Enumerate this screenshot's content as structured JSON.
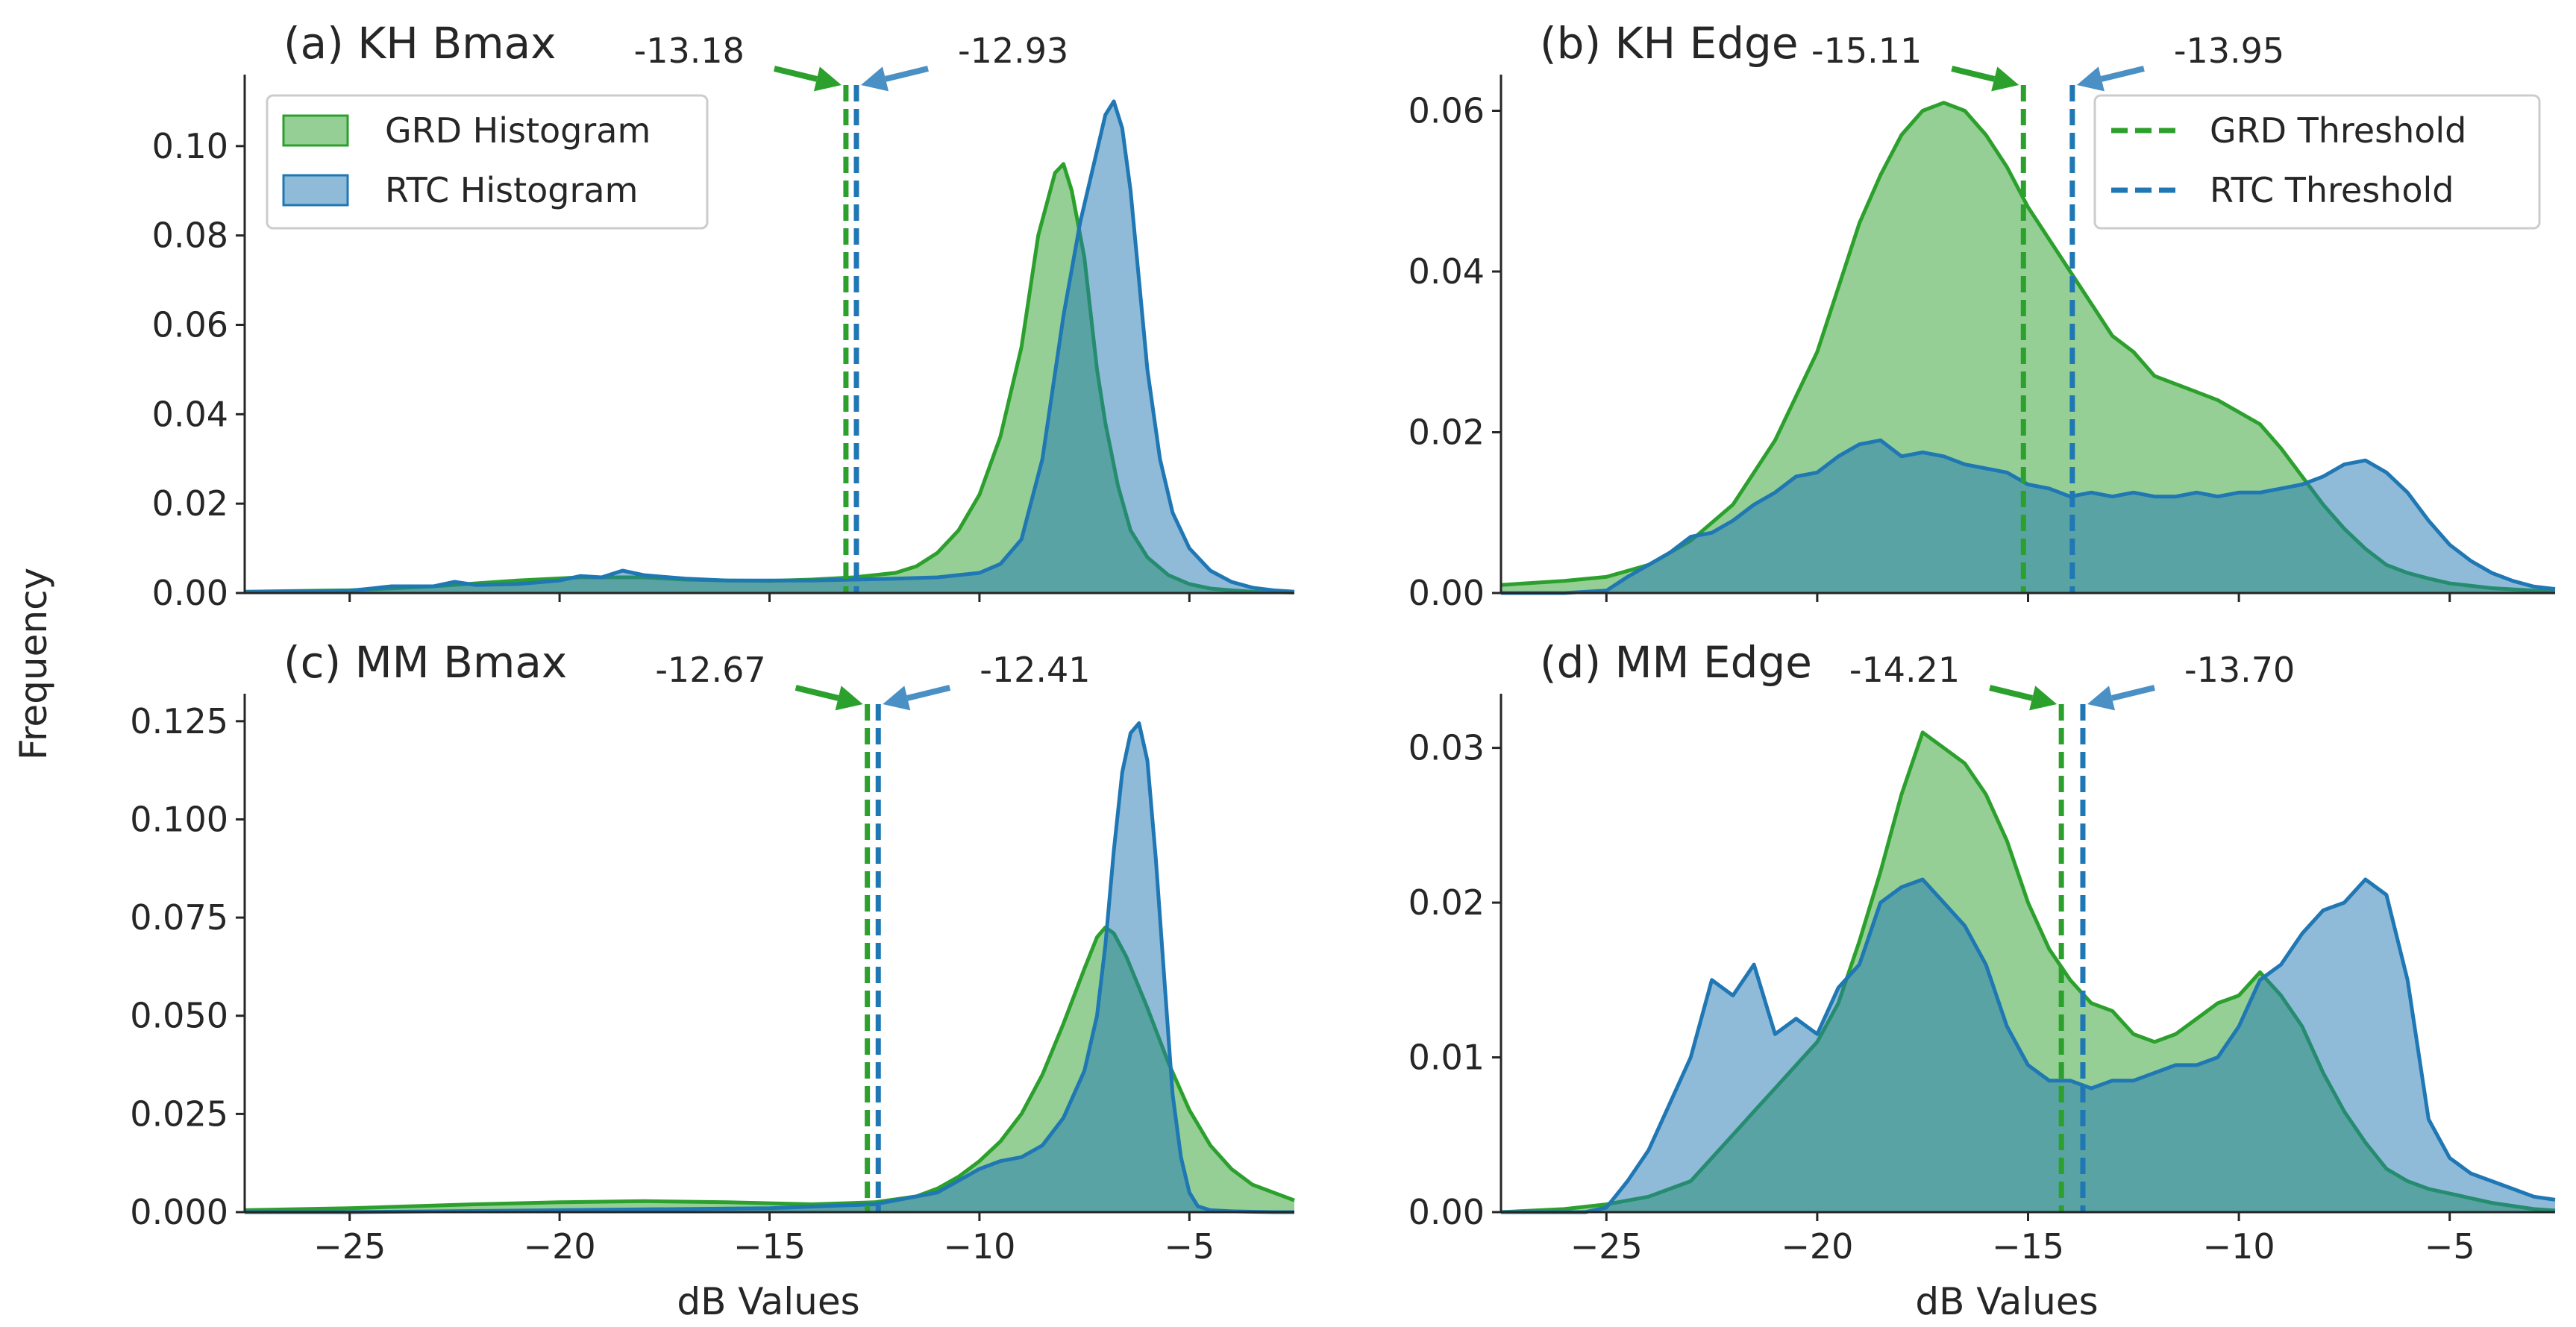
{
  "figure": {
    "ylabel": "Frequency",
    "xlabel": "dB Values",
    "colors": {
      "grd_fill": "#2ca02c",
      "grd_line": "#2ca02c",
      "rtc_fill": "#1f77b4",
      "rtc_line": "#1f77b4",
      "arrow_grd": "#2ca02c",
      "arrow_rtc": "#4a90c4",
      "axis": "#262626"
    }
  },
  "legend_hist": {
    "grd": "GRD Histogram",
    "rtc": "RTC Histogram"
  },
  "legend_thresh": {
    "grd": "GRD Threshold",
    "rtc": "RTC Threshold"
  },
  "chart_data": [
    {
      "id": "a",
      "type": "area",
      "title": "(a) KH Bmax",
      "xlim": [
        -27.5,
        -2.5
      ],
      "ylim": [
        0,
        0.116
      ],
      "yticks": [
        0,
        0.02,
        0.04,
        0.06,
        0.08,
        0.1
      ],
      "ytick_labels": [
        "0.00",
        "0.02",
        "0.04",
        "0.06",
        "0.08",
        "0.10"
      ],
      "xticks": [
        -25,
        -20,
        -15,
        -10,
        -5
      ],
      "xtick_labels": [
        "−25",
        "−20",
        "−15",
        "−10",
        "−5"
      ],
      "show_xtick_labels": false,
      "thresholds": {
        "grd": -13.18,
        "rtc": -12.93,
        "grd_label": "-13.18",
        "rtc_label": "-12.93"
      },
      "series": [
        {
          "name": "GRD Histogram",
          "x": [
            -27.5,
            -25,
            -23,
            -21,
            -19.5,
            -18,
            -17,
            -16,
            -15,
            -14,
            -13,
            -12,
            -11.5,
            -11,
            -10.5,
            -10,
            -9.5,
            -9,
            -8.6,
            -8.2,
            -8.0,
            -7.8,
            -7.5,
            -7.2,
            -7.0,
            -6.7,
            -6.4,
            -6.0,
            -5.5,
            -5,
            -4.5,
            -4,
            -3.5,
            -3,
            -2.5
          ],
          "values": [
            0.0003,
            0.0006,
            0.0015,
            0.0028,
            0.0035,
            0.0035,
            0.003,
            0.0028,
            0.0027,
            0.003,
            0.0035,
            0.0045,
            0.006,
            0.009,
            0.014,
            0.022,
            0.035,
            0.055,
            0.08,
            0.094,
            0.096,
            0.09,
            0.075,
            0.05,
            0.038,
            0.024,
            0.014,
            0.008,
            0.004,
            0.002,
            0.001,
            0.0006,
            0.0003,
            0.0002,
            0.0001
          ]
        },
        {
          "name": "RTC Histogram",
          "x": [
            -27.5,
            -25,
            -24,
            -23,
            -22.5,
            -22,
            -21,
            -20,
            -19.5,
            -19,
            -18.5,
            -18,
            -17,
            -16,
            -15,
            -14,
            -13,
            -12,
            -11,
            -10,
            -9.5,
            -9,
            -8.5,
            -8,
            -7.6,
            -7.2,
            -7.0,
            -6.8,
            -6.6,
            -6.4,
            -6.2,
            -6.0,
            -5.7,
            -5.4,
            -5.0,
            -4.5,
            -4,
            -3.5,
            -3,
            -2.5
          ],
          "values": [
            0.0002,
            0.0005,
            0.0015,
            0.0015,
            0.0025,
            0.0018,
            0.002,
            0.0028,
            0.0038,
            0.0035,
            0.005,
            0.004,
            0.0032,
            0.0028,
            0.0028,
            0.0028,
            0.003,
            0.0032,
            0.0035,
            0.0045,
            0.0065,
            0.012,
            0.03,
            0.062,
            0.083,
            0.099,
            0.107,
            0.11,
            0.104,
            0.09,
            0.07,
            0.05,
            0.03,
            0.018,
            0.01,
            0.005,
            0.0025,
            0.0012,
            0.0006,
            0.0003
          ]
        }
      ]
    },
    {
      "id": "b",
      "type": "area",
      "title": "(b) KH Edge",
      "xlim": [
        -27.5,
        -2.5
      ],
      "ylim": [
        0,
        0.0645
      ],
      "yticks": [
        0,
        0.02,
        0.04,
        0.06
      ],
      "ytick_labels": [
        "0.00",
        "0.02",
        "0.04",
        "0.06"
      ],
      "xticks": [
        -25,
        -20,
        -15,
        -10,
        -5
      ],
      "xtick_labels": [
        "−25",
        "−20",
        "−15",
        "−10",
        "−5"
      ],
      "show_xtick_labels": false,
      "thresholds": {
        "grd": -15.11,
        "rtc": -13.95,
        "grd_label": "-15.11",
        "rtc_label": "-13.95"
      },
      "series": [
        {
          "name": "GRD Histogram",
          "x": [
            -27.5,
            -26,
            -25,
            -24,
            -23,
            -22,
            -21,
            -20,
            -19.5,
            -19,
            -18.5,
            -18,
            -17.5,
            -17,
            -16.5,
            -16,
            -15.5,
            -15,
            -14.5,
            -14,
            -13.5,
            -13,
            -12.5,
            -12,
            -11.5,
            -11,
            -10.5,
            -10,
            -9.5,
            -9,
            -8.5,
            -8,
            -7.5,
            -7,
            -6.5,
            -6,
            -5.5,
            -5,
            -4,
            -3,
            -2.5
          ],
          "values": [
            0.001,
            0.0015,
            0.002,
            0.0035,
            0.0065,
            0.011,
            0.019,
            0.03,
            0.038,
            0.046,
            0.052,
            0.057,
            0.06,
            0.061,
            0.06,
            0.057,
            0.053,
            0.048,
            0.044,
            0.04,
            0.036,
            0.032,
            0.03,
            0.027,
            0.026,
            0.025,
            0.024,
            0.0225,
            0.021,
            0.018,
            0.0145,
            0.011,
            0.008,
            0.0055,
            0.0035,
            0.0025,
            0.0018,
            0.0012,
            0.0006,
            0.0003,
            0.0002
          ]
        },
        {
          "name": "RTC Histogram",
          "x": [
            -27.5,
            -26,
            -25,
            -24.5,
            -24,
            -23.5,
            -23,
            -22.5,
            -22,
            -21.5,
            -21,
            -20.5,
            -20,
            -19.5,
            -19,
            -18.5,
            -18,
            -17.5,
            -17,
            -16.5,
            -16,
            -15.5,
            -15,
            -14.5,
            -14,
            -13.5,
            -13,
            -12.5,
            -12,
            -11.5,
            -11,
            -10.5,
            -10,
            -9.5,
            -9,
            -8.5,
            -8,
            -7.5,
            -7.0,
            -6.5,
            -6,
            -5.5,
            -5,
            -4.5,
            -4,
            -3.5,
            -3,
            -2.5
          ],
          "values": [
            0,
            0,
            0.0003,
            0.002,
            0.0035,
            0.005,
            0.007,
            0.0075,
            0.009,
            0.011,
            0.0125,
            0.0145,
            0.015,
            0.017,
            0.0185,
            0.019,
            0.017,
            0.0175,
            0.017,
            0.016,
            0.0155,
            0.015,
            0.0135,
            0.013,
            0.012,
            0.0125,
            0.012,
            0.0125,
            0.012,
            0.012,
            0.0125,
            0.012,
            0.0125,
            0.0125,
            0.013,
            0.0135,
            0.0145,
            0.016,
            0.0165,
            0.015,
            0.0125,
            0.009,
            0.006,
            0.004,
            0.0025,
            0.0015,
            0.0008,
            0.0005
          ]
        }
      ]
    },
    {
      "id": "c",
      "type": "area",
      "title": "(c) MM Bmax",
      "xlim": [
        -27.5,
        -2.5
      ],
      "ylim": [
        0,
        0.132
      ],
      "yticks": [
        0,
        0.025,
        0.05,
        0.075,
        0.1,
        0.125
      ],
      "ytick_labels": [
        "0.000",
        "0.025",
        "0.050",
        "0.075",
        "0.100",
        "0.125"
      ],
      "xticks": [
        -25,
        -20,
        -15,
        -10,
        -5
      ],
      "xtick_labels": [
        "−25",
        "−20",
        "−15",
        "−10",
        "−5"
      ],
      "show_xtick_labels": true,
      "thresholds": {
        "grd": -12.67,
        "rtc": -12.41,
        "grd_label": "-12.67",
        "rtc_label": "-12.41"
      },
      "series": [
        {
          "name": "GRD Histogram",
          "x": [
            -27.5,
            -25,
            -22,
            -20,
            -18,
            -16,
            -14,
            -12.5,
            -11.5,
            -11,
            -10.5,
            -10,
            -9.5,
            -9,
            -8.5,
            -8,
            -7.5,
            -7.2,
            -7.0,
            -6.8,
            -6.5,
            -6.0,
            -5.5,
            -5,
            -4.5,
            -4,
            -3.5,
            -3,
            -2.5
          ],
          "values": [
            0.0005,
            0.001,
            0.002,
            0.0025,
            0.0028,
            0.0025,
            0.002,
            0.0025,
            0.004,
            0.006,
            0.009,
            0.013,
            0.018,
            0.025,
            0.035,
            0.048,
            0.062,
            0.07,
            0.0725,
            0.071,
            0.065,
            0.052,
            0.038,
            0.026,
            0.017,
            0.011,
            0.007,
            0.005,
            0.003
          ]
        },
        {
          "name": "RTC Histogram",
          "x": [
            -27.5,
            -25,
            -20,
            -15,
            -12.5,
            -11,
            -10.5,
            -10,
            -9.5,
            -9,
            -8.5,
            -8,
            -7.5,
            -7.2,
            -7.0,
            -6.8,
            -6.6,
            -6.4,
            -6.2,
            -6.0,
            -5.8,
            -5.6,
            -5.4,
            -5.2,
            -5.0,
            -4.8,
            -4.5,
            -4,
            -3.5,
            -3,
            -2.5
          ],
          "values": [
            0,
            0,
            0.0005,
            0.001,
            0.002,
            0.005,
            0.008,
            0.011,
            0.013,
            0.014,
            0.017,
            0.024,
            0.036,
            0.05,
            0.068,
            0.092,
            0.112,
            0.122,
            0.1245,
            0.115,
            0.09,
            0.06,
            0.03,
            0.014,
            0.005,
            0.0015,
            0.0005,
            0.0002,
            0.0001,
            0,
            0
          ]
        }
      ]
    },
    {
      "id": "d",
      "type": "area",
      "title": "(d) MM Edge",
      "xlim": [
        -27.5,
        -2.5
      ],
      "ylim": [
        0,
        0.0335
      ],
      "yticks": [
        0,
        0.01,
        0.02,
        0.03
      ],
      "ytick_labels": [
        "0.00",
        "0.01",
        "0.02",
        "0.03"
      ],
      "xticks": [
        -25,
        -20,
        -15,
        -10,
        -5
      ],
      "xtick_labels": [
        "−25",
        "−20",
        "−15",
        "−10",
        "−5"
      ],
      "show_xtick_labels": true,
      "thresholds": {
        "grd": -14.21,
        "rtc": -13.7,
        "grd_label": "-14.21",
        "rtc_label": "-13.70"
      },
      "series": [
        {
          "name": "GRD Histogram",
          "x": [
            -27.5,
            -26,
            -25,
            -24,
            -23.5,
            -23,
            -22.5,
            -22,
            -21.5,
            -21,
            -20.5,
            -20,
            -19.5,
            -19,
            -18.5,
            -18,
            -17.5,
            -17,
            -16.5,
            -16,
            -15.5,
            -15,
            -14.5,
            -14,
            -13.5,
            -13,
            -12.5,
            -12,
            -11.5,
            -11,
            -10.5,
            -10,
            -9.5,
            -9,
            -8.5,
            -8,
            -7.5,
            -7,
            -6.5,
            -6,
            -5.5,
            -5,
            -4,
            -3,
            -2.5
          ],
          "values": [
            0,
            0.0002,
            0.0005,
            0.001,
            0.0015,
            0.002,
            0.0035,
            0.005,
            0.0065,
            0.008,
            0.0095,
            0.011,
            0.0135,
            0.0175,
            0.022,
            0.027,
            0.031,
            0.03,
            0.029,
            0.027,
            0.024,
            0.02,
            0.017,
            0.015,
            0.0135,
            0.013,
            0.0115,
            0.011,
            0.0115,
            0.0125,
            0.0135,
            0.014,
            0.0155,
            0.014,
            0.012,
            0.009,
            0.0065,
            0.0045,
            0.0028,
            0.002,
            0.0015,
            0.0012,
            0.0006,
            0.0002,
            0.0001
          ]
        },
        {
          "name": "RTC Histogram",
          "x": [
            -27.5,
            -25.5,
            -25,
            -24.5,
            -24,
            -23.5,
            -23,
            -22.5,
            -22,
            -21.5,
            -21,
            -20.5,
            -20,
            -19.5,
            -19,
            -18.5,
            -18,
            -17.5,
            -17,
            -16.5,
            -16,
            -15.5,
            -15,
            -14.5,
            -14,
            -13.5,
            -13,
            -12.5,
            -12,
            -11.5,
            -11,
            -10.5,
            -10,
            -9.5,
            -9,
            -8.5,
            -8,
            -7.5,
            -7,
            -6.5,
            -6,
            -5.5,
            -5,
            -4.5,
            -4,
            -3.5,
            -3,
            -2.5
          ],
          "values": [
            0,
            0,
            0.0003,
            0.002,
            0.004,
            0.007,
            0.01,
            0.015,
            0.014,
            0.016,
            0.0115,
            0.0125,
            0.0115,
            0.0145,
            0.016,
            0.02,
            0.021,
            0.0215,
            0.02,
            0.0185,
            0.016,
            0.012,
            0.0095,
            0.0085,
            0.0085,
            0.008,
            0.0085,
            0.0085,
            0.009,
            0.0095,
            0.0095,
            0.01,
            0.012,
            0.015,
            0.016,
            0.018,
            0.0195,
            0.02,
            0.0215,
            0.0205,
            0.015,
            0.006,
            0.0035,
            0.0025,
            0.002,
            0.0015,
            0.001,
            0.0008
          ]
        }
      ]
    }
  ]
}
